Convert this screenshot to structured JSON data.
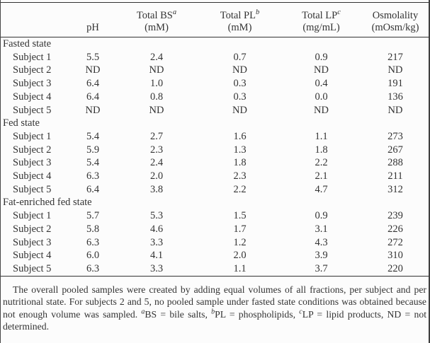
{
  "page": {
    "background": "#fcfcfc",
    "text_color": "#333333",
    "rule_color": "#333333"
  },
  "table": {
    "header": {
      "columns": [
        {
          "title": "pH",
          "sup": "",
          "unit": ""
        },
        {
          "title": "Total BS",
          "sup": "a",
          "unit": "(mM)"
        },
        {
          "title": "Total PL",
          "sup": "b",
          "unit": "(mM)"
        },
        {
          "title": "Total LP",
          "sup": "c",
          "unit": "(mg/mL)"
        },
        {
          "title": "Osmolality",
          "sup": "",
          "unit": "(mOsm/kg)"
        }
      ]
    },
    "sections": [
      {
        "label": "Fasted state",
        "rows": [
          {
            "label": "Subject 1",
            "values": [
              "5.5",
              "2.4",
              "0.7",
              "0.9",
              "217"
            ]
          },
          {
            "label": "Subject 2",
            "values": [
              "ND",
              "ND",
              "ND",
              "ND",
              "ND"
            ]
          },
          {
            "label": "Subject 3",
            "values": [
              "6.4",
              "1.0",
              "0.3",
              "0.4",
              "191"
            ]
          },
          {
            "label": "Subject 4",
            "values": [
              "6.4",
              "0.8",
              "0.3",
              "0.0",
              "136"
            ]
          },
          {
            "label": "Subject 5",
            "values": [
              "ND",
              "ND",
              "ND",
              "ND",
              "ND"
            ]
          }
        ]
      },
      {
        "label": "Fed state",
        "rows": [
          {
            "label": "Subject 1",
            "values": [
              "5.4",
              "2.7",
              "1.6",
              "1.1",
              "273"
            ]
          },
          {
            "label": "Subject 2",
            "values": [
              "5.9",
              "2.3",
              "1.3",
              "1.8",
              "267"
            ]
          },
          {
            "label": "Subject 3",
            "values": [
              "5.4",
              "2.4",
              "1.8",
              "2.2",
              "288"
            ]
          },
          {
            "label": "Subject 4",
            "values": [
              "6.3",
              "2.0",
              "2.3",
              "2.1",
              "211"
            ]
          },
          {
            "label": "Subject 5",
            "values": [
              "6.4",
              "3.8",
              "2.2",
              "4.7",
              "312"
            ]
          }
        ]
      },
      {
        "label": "Fat-enriched fed state",
        "rows": [
          {
            "label": "Subject 1",
            "values": [
              "5.7",
              "5.3",
              "1.5",
              "0.9",
              "239"
            ]
          },
          {
            "label": "Subject 2",
            "values": [
              "5.8",
              "4.6",
              "1.7",
              "3.1",
              "226"
            ]
          },
          {
            "label": "Subject 3",
            "values": [
              "6.3",
              "3.3",
              "1.2",
              "4.3",
              "272"
            ]
          },
          {
            "label": "Subject 4",
            "values": [
              "6.0",
              "4.1",
              "2.0",
              "3.9",
              "310"
            ]
          },
          {
            "label": "Subject 5",
            "values": [
              "6.3",
              "3.3",
              "1.1",
              "3.7",
              "220"
            ]
          }
        ]
      }
    ]
  },
  "footnote": {
    "intro": "The overall pooled samples were created by adding equal volumes of all fractions, per subject and per nutritional state. For subjects 2 and 5, no pooled sample under fasted state conditions was obtained because not enough volume was sampled. ",
    "abbr": [
      {
        "sup": "a",
        "text": "BS = bile salts, "
      },
      {
        "sup": "b",
        "text": "PL = phospholipids, "
      },
      {
        "sup": "c",
        "text": "LP = lipid products, ND = not determined."
      }
    ]
  }
}
